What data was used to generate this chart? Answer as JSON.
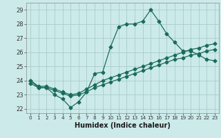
{
  "xlabel": "Humidex (Indice chaleur)",
  "background_color": "#cceaea",
  "grid_color": "#aacccc",
  "line_color": "#1a6b5a",
  "xlim": [
    -0.5,
    23.5
  ],
  "ylim": [
    21.7,
    29.5
  ],
  "ytick_values": [
    22,
    23,
    24,
    25,
    26,
    27,
    28,
    29
  ],
  "line1_x": [
    0,
    1,
    2,
    3,
    4,
    5,
    6,
    7,
    8,
    9,
    10,
    11,
    12,
    13,
    14,
    15,
    16,
    17,
    18,
    19,
    20,
    21,
    22,
    23
  ],
  "line1_y": [
    24.0,
    23.5,
    23.5,
    23.0,
    22.7,
    22.1,
    22.5,
    23.2,
    24.5,
    24.6,
    26.4,
    27.8,
    28.0,
    28.0,
    28.2,
    29.0,
    28.2,
    27.3,
    26.7,
    26.1,
    26.1,
    25.8,
    25.5,
    25.4
  ],
  "line2_x": [
    0,
    1,
    2,
    3,
    4,
    5,
    6,
    7,
    8,
    9,
    10,
    11,
    12,
    13,
    14,
    15,
    16,
    17,
    18,
    19,
    20,
    21,
    22,
    23
  ],
  "line2_y": [
    23.8,
    23.5,
    23.5,
    23.3,
    23.1,
    22.9,
    23.0,
    23.2,
    23.5,
    23.7,
    23.9,
    24.1,
    24.3,
    24.5,
    24.7,
    24.9,
    25.1,
    25.3,
    25.5,
    25.6,
    25.8,
    25.9,
    26.1,
    26.2
  ],
  "line3_x": [
    0,
    1,
    2,
    3,
    4,
    5,
    6,
    7,
    8,
    9,
    10,
    11,
    12,
    13,
    14,
    15,
    16,
    17,
    18,
    19,
    20,
    21,
    22,
    23
  ],
  "line3_y": [
    24.0,
    23.6,
    23.6,
    23.4,
    23.2,
    23.0,
    23.1,
    23.4,
    23.7,
    24.0,
    24.2,
    24.4,
    24.6,
    24.8,
    25.0,
    25.2,
    25.4,
    25.6,
    25.8,
    26.0,
    26.2,
    26.3,
    26.5,
    26.6
  ]
}
